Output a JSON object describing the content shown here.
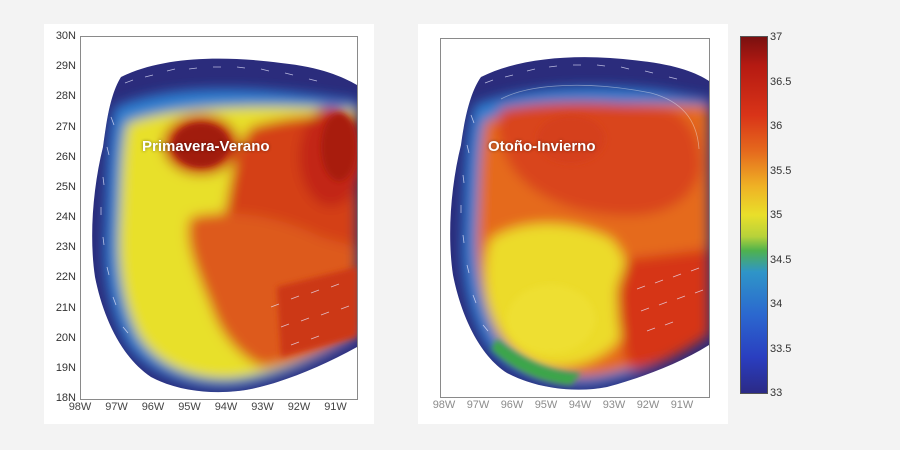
{
  "panels": [
    {
      "title": "Primavera-Verano",
      "x_ticks": [
        "98W",
        "97W",
        "96W",
        "95W",
        "94W",
        "93W",
        "92W",
        "91W"
      ]
    },
    {
      "title": "Otoño-Invierno",
      "x_ticks": [
        "98W",
        "97W",
        "96W",
        "95W",
        "94W",
        "93W",
        "92W",
        "91W"
      ]
    }
  ],
  "y_ticks": [
    "30N",
    "29N",
    "28N",
    "27N",
    "26N",
    "25N",
    "24N",
    "23N",
    "22N",
    "21N",
    "20N",
    "19N",
    "18N"
  ],
  "colorbar": {
    "ticks": [
      "37",
      "36.5",
      "36",
      "35.5",
      "35",
      "34.5",
      "34",
      "33.5",
      "33"
    ],
    "min": 33,
    "max": 37
  },
  "colors": {
    "high": "#8b1410",
    "mid_high": "#d8431b",
    "mid": "#e7d62a",
    "low_mid": "#2f8fd0",
    "low": "#2b2c7c"
  }
}
